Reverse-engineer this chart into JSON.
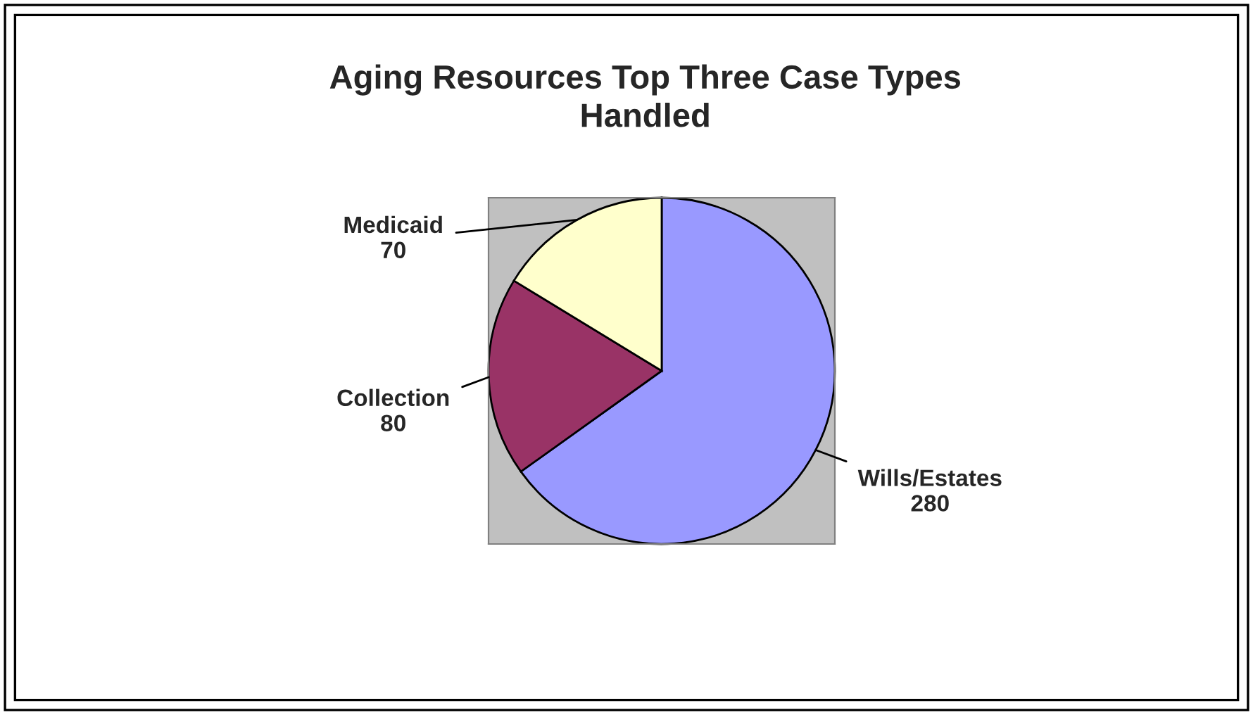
{
  "chart_data": {
    "type": "pie",
    "title": "Aging Resources Top Three Case Types\nHandled",
    "categories": [
      "Wills/Estates",
      "Collection",
      "Medicaid"
    ],
    "values": [
      280,
      80,
      70
    ],
    "colors": [
      "#9999ff",
      "#993366",
      "#ffffcc"
    ],
    "data_labels": true
  }
}
